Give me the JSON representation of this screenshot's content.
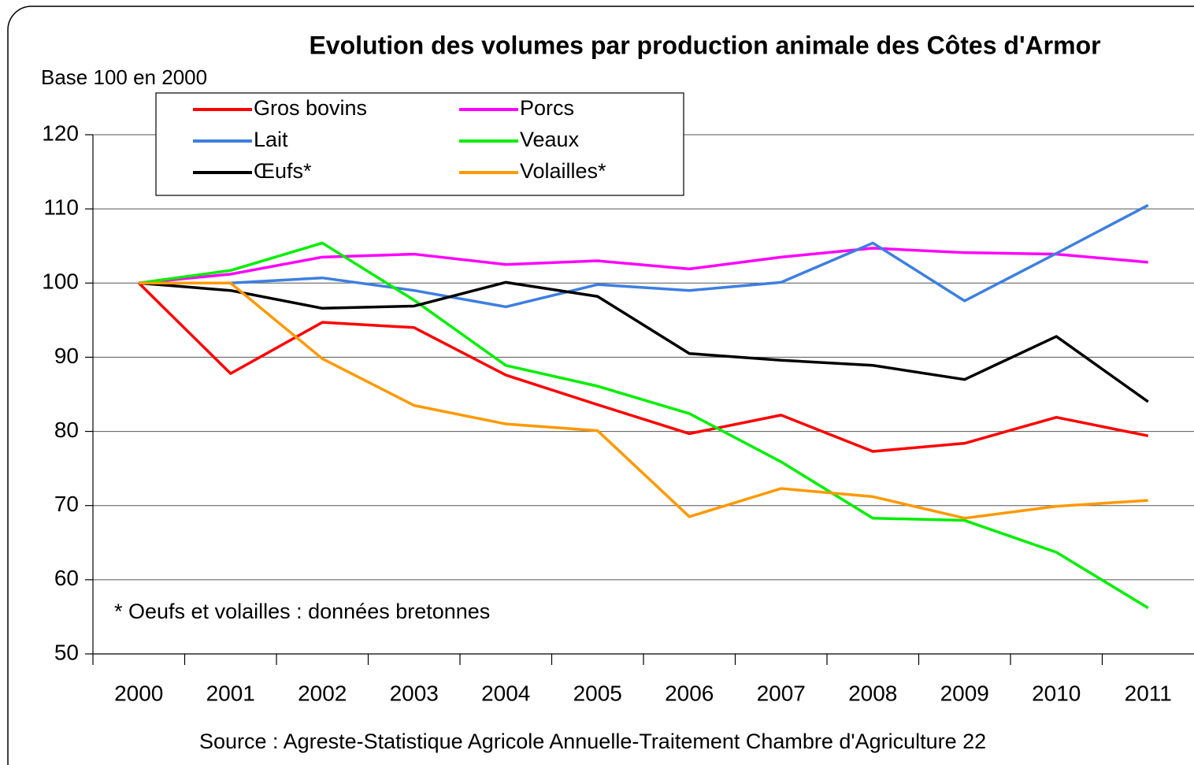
{
  "chart_data": {
    "type": "line",
    "title": "Evolution des volumes par production animale des Côtes d'Armor",
    "y_label": "Base 100 en 2000",
    "annotation": "* Oeufs et volailles : données bretonnes",
    "source": "Source : Agreste-Statistique Agricole Annuelle-Traitement Chambre d'Agriculture 22",
    "categories": [
      "2000",
      "2001",
      "2002",
      "2003",
      "2004",
      "2005",
      "2006",
      "2007",
      "2008",
      "2009",
      "2010",
      "2011"
    ],
    "series": [
      {
        "name": "Gros bovins",
        "color": "#ff0000",
        "values": [
          100,
          87.8,
          94.7,
          94.0,
          87.6,
          83.6,
          79.7,
          82.2,
          77.3,
          78.4,
          81.9,
          79.4
        ]
      },
      {
        "name": "Porcs",
        "color": "#ff00ff",
        "values": [
          100,
          101.2,
          103.5,
          103.9,
          102.5,
          103.0,
          101.9,
          103.5,
          104.7,
          104.1,
          103.9,
          102.8
        ]
      },
      {
        "name": "Lait",
        "color": "#3d7fe0",
        "values": [
          100,
          100.0,
          100.7,
          99.0,
          96.8,
          99.8,
          99.0,
          100.1,
          105.4,
          97.6,
          104.0,
          110.5
        ]
      },
      {
        "name": "Veaux",
        "color": "#00ee00",
        "values": [
          100,
          101.7,
          105.4,
          97.7,
          88.9,
          86.1,
          82.4,
          75.9,
          68.3,
          68.0,
          63.7,
          56.2
        ]
      },
      {
        "name": "Œufs*",
        "color": "#000000",
        "values": [
          100,
          99.0,
          96.6,
          96.9,
          100.1,
          98.2,
          90.5,
          89.6,
          88.9,
          87.0,
          92.8,
          84.0
        ]
      },
      {
        "name": "Volailles*",
        "color": "#ff9900",
        "values": [
          100,
          100.0,
          89.8,
          83.5,
          81.0,
          80.1,
          68.5,
          72.3,
          71.2,
          68.3,
          69.9,
          70.7
        ]
      }
    ],
    "ylim": [
      50,
      120
    ],
    "yticks": [
      50,
      60,
      70,
      80,
      90,
      100,
      110,
      120
    ],
    "grid": true,
    "legend": "upper left"
  }
}
